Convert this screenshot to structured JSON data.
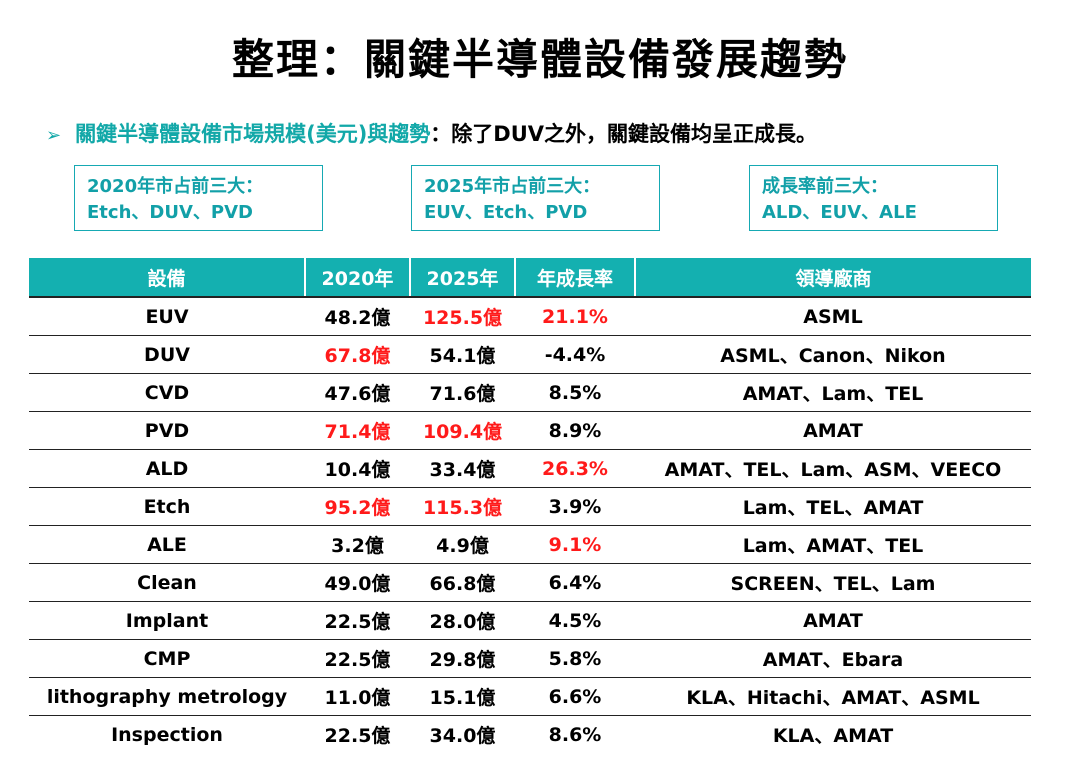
{
  "title": "整理：關鍵半導體設備發展趨勢",
  "subline": {
    "bullet": "➢",
    "highlight": "關鍵半導體設備市場規模(美元)與趨勢",
    "rest": "：除了DUV之外，關鍵設備均呈正成長。"
  },
  "boxes": [
    {
      "line1": "2020年市占前三大：",
      "line2": "Etch、DUV、PVD"
    },
    {
      "line1": "2025年市占前三大：",
      "line2": "EUV、Etch、PVD"
    },
    {
      "line1": "成長率前三大：",
      "line2": "ALD、EUV、ALE"
    }
  ],
  "table": {
    "headers": [
      "設備",
      "2020年",
      "2025年",
      "年成長率",
      "領導廠商"
    ],
    "rows": [
      {
        "equipment": "EUV",
        "y2020": "48.2億",
        "y2025": "125.5億",
        "growth": "21.1%",
        "vendors": "ASML",
        "red": [
          false,
          true,
          true
        ]
      },
      {
        "equipment": "DUV",
        "y2020": "67.8億",
        "y2025": "54.1億",
        "growth": "-4.4%",
        "vendors": "ASML、Canon、Nikon",
        "red": [
          true,
          false,
          false
        ]
      },
      {
        "equipment": "CVD",
        "y2020": "47.6億",
        "y2025": "71.6億",
        "growth": "8.5%",
        "vendors": "AMAT、Lam、TEL",
        "red": [
          false,
          false,
          false
        ]
      },
      {
        "equipment": "PVD",
        "y2020": "71.4億",
        "y2025": "109.4億",
        "growth": "8.9%",
        "vendors": "AMAT",
        "red": [
          true,
          true,
          false
        ]
      },
      {
        "equipment": "ALD",
        "y2020": "10.4億",
        "y2025": "33.4億",
        "growth": "26.3%",
        "vendors": "AMAT、TEL、Lam、ASM、VEECO",
        "red": [
          false,
          false,
          true
        ]
      },
      {
        "equipment": "Etch",
        "y2020": "95.2億",
        "y2025": "115.3億",
        "growth": "3.9%",
        "vendors": "Lam、TEL、AMAT",
        "red": [
          true,
          true,
          false
        ]
      },
      {
        "equipment": "ALE",
        "y2020": "3.2億",
        "y2025": "4.9億",
        "growth": "9.1%",
        "vendors": "Lam、AMAT、TEL",
        "red": [
          false,
          false,
          true
        ]
      },
      {
        "equipment": "Clean",
        "y2020": "49.0億",
        "y2025": "66.8億",
        "growth": "6.4%",
        "vendors": "SCREEN、TEL、Lam",
        "red": [
          false,
          false,
          false
        ]
      },
      {
        "equipment": "Implant",
        "y2020": "22.5億",
        "y2025": "28.0億",
        "growth": "4.5%",
        "vendors": "AMAT",
        "red": [
          false,
          false,
          false
        ]
      },
      {
        "equipment": "CMP",
        "y2020": "22.5億",
        "y2025": "29.8億",
        "growth": "5.8%",
        "vendors": "AMAT、Ebara",
        "red": [
          false,
          false,
          false
        ]
      },
      {
        "equipment": "lithography metrology",
        "y2020": "11.0億",
        "y2025": "15.1億",
        "growth": "6.6%",
        "vendors": "KLA、Hitachi、AMAT、ASML",
        "red": [
          false,
          false,
          false
        ]
      },
      {
        "equipment": "Inspection",
        "y2020": "22.5億",
        "y2025": "34.0億",
        "growth": "8.6%",
        "vendors": "KLA、AMAT",
        "red": [
          false,
          false,
          false
        ]
      }
    ]
  },
  "colors": {
    "teal": "#14b0b0",
    "highlight_red": "#ff1a1a"
  }
}
